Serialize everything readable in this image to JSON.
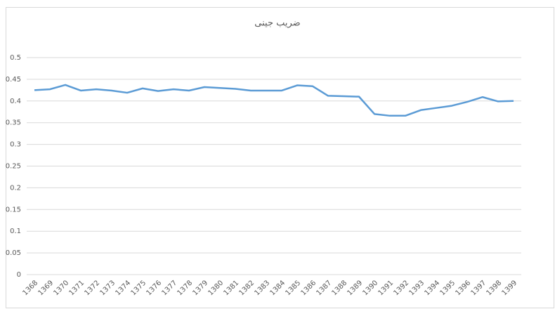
{
  "chart_data": {
    "type": "line",
    "title": "ضریب جینی",
    "categories": [
      "1368",
      "1369",
      "1370",
      "1371",
      "1372",
      "1373",
      "1374",
      "1375",
      "1376",
      "1377",
      "1378",
      "1379",
      "1380",
      "1381",
      "1382",
      "1383",
      "1384",
      "1385",
      "1386",
      "1387",
      "1388",
      "1389",
      "1390",
      "1391",
      "1392",
      "1393",
      "1394",
      "1395",
      "1396",
      "1397",
      "1398",
      "1399"
    ],
    "values": [
      0.425,
      0.427,
      0.437,
      0.424,
      0.427,
      0.424,
      0.419,
      0.429,
      0.423,
      0.427,
      0.424,
      0.432,
      0.43,
      0.428,
      0.424,
      0.424,
      0.424,
      0.436,
      0.434,
      0.412,
      0.411,
      0.41,
      0.37,
      0.366,
      0.366,
      0.379,
      0.384,
      0.389,
      0.398,
      0.409,
      0.399,
      0.4
    ],
    "color": "#5b9bd5",
    "ylim": [
      0,
      0.5
    ],
    "yticks": [
      0,
      0.05,
      0.1,
      0.15,
      0.2,
      0.25,
      0.3,
      0.35,
      0.4,
      0.45,
      0.5
    ],
    "grid": true
  }
}
